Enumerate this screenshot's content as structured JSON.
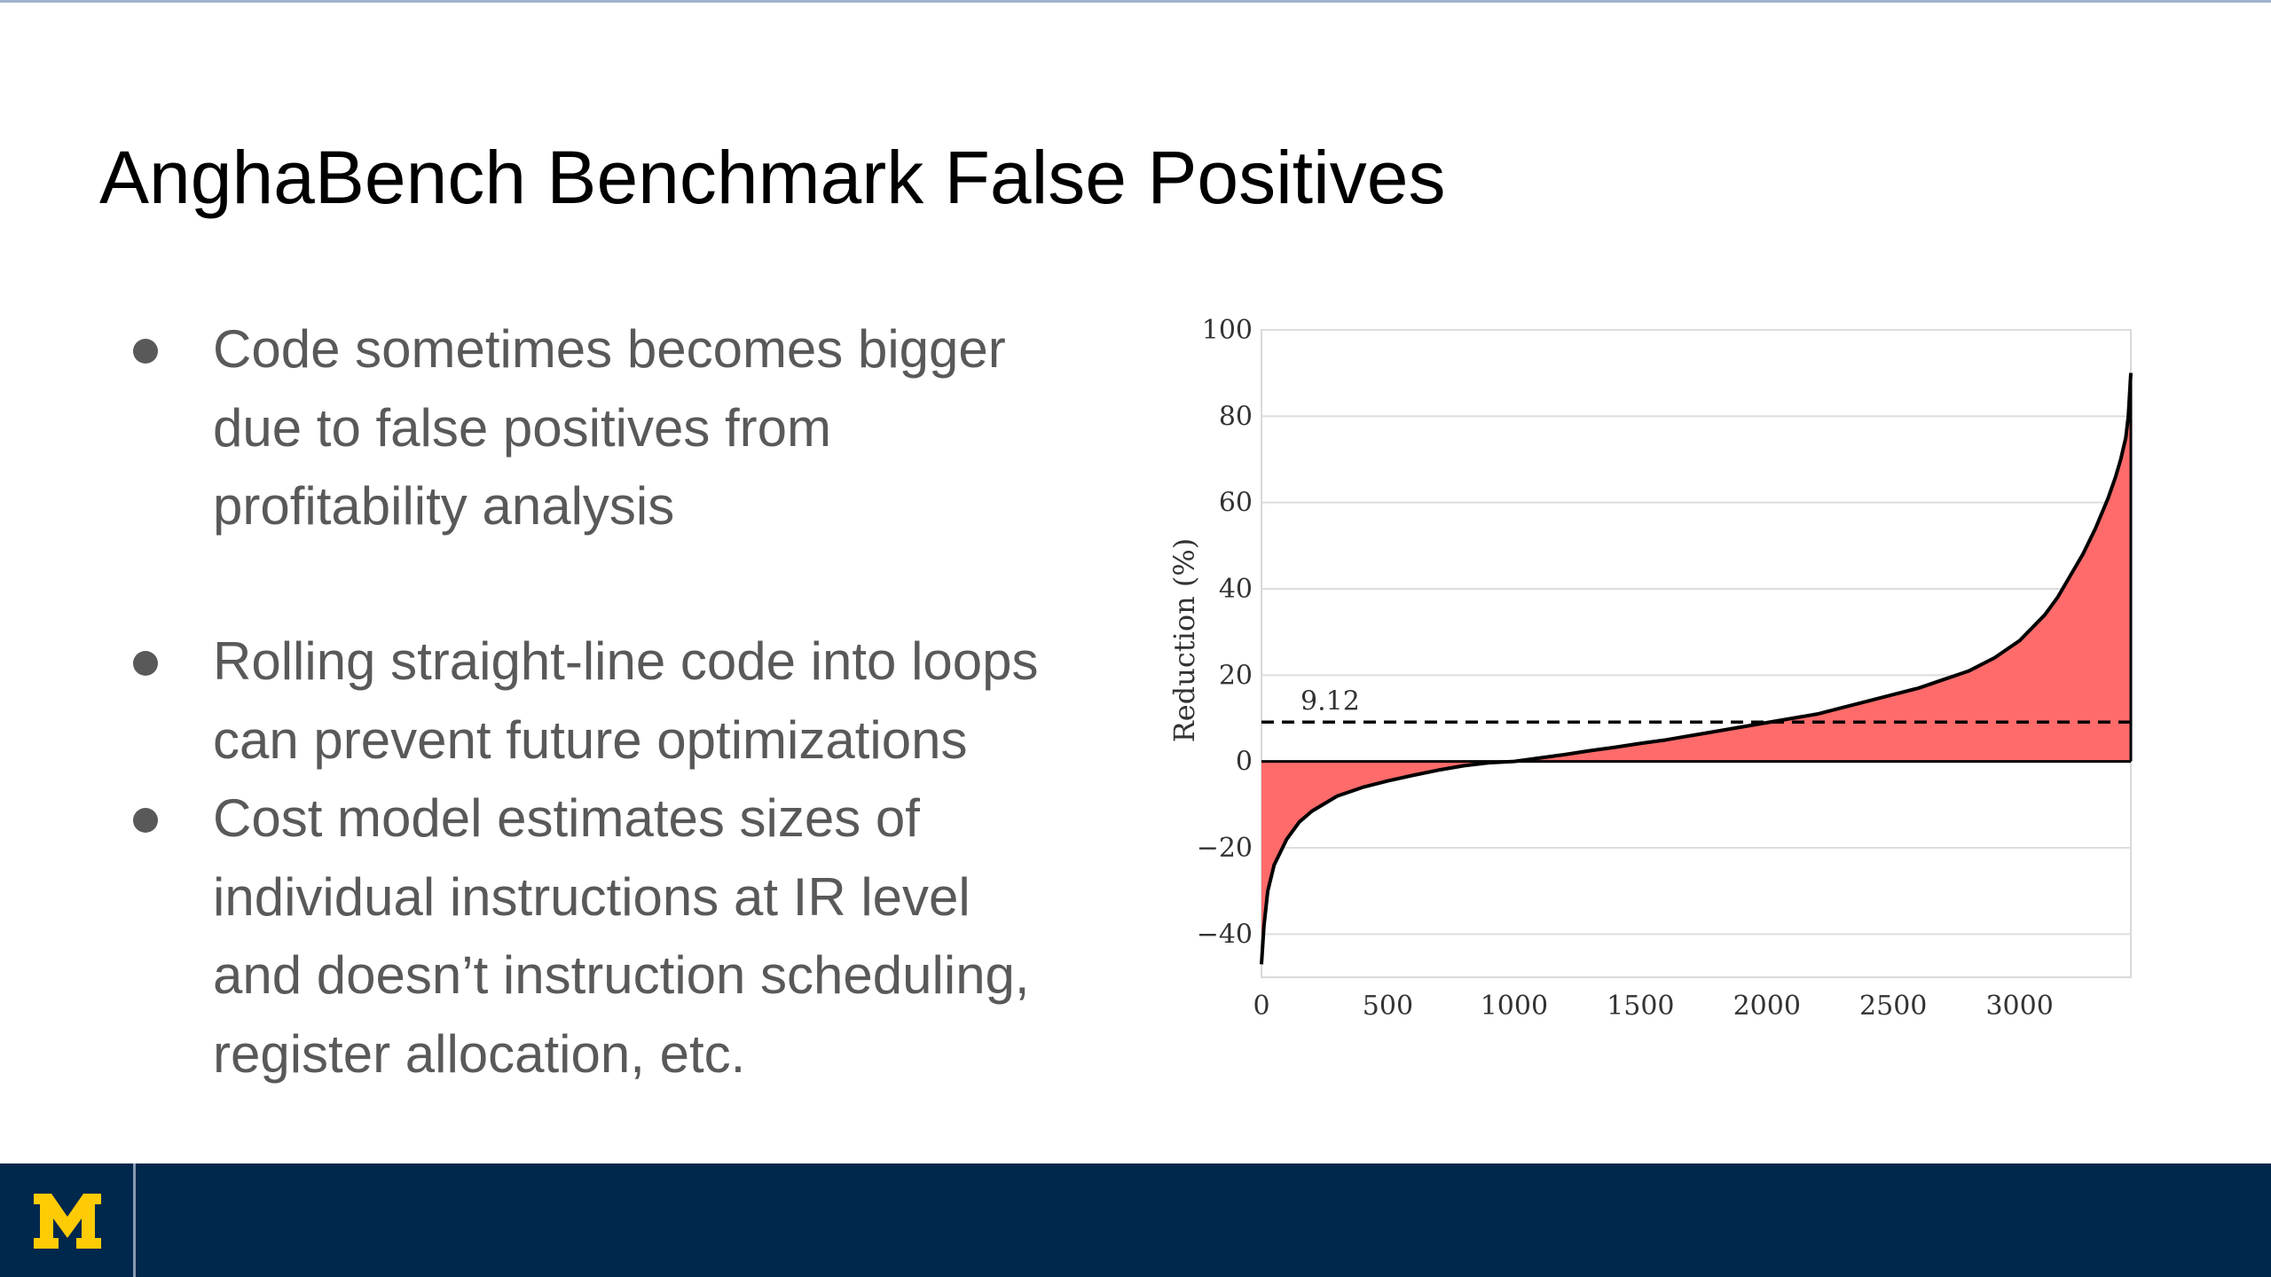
{
  "slide": {
    "title": "AnghaBench Benchmark False Positives",
    "bullets": [
      {
        "lines": [
          "Code sometimes becomes bigger",
          "due to false positives from",
          "profitability analysis"
        ]
      },
      {
        "lines": [
          "Rolling straight-line code into loops",
          "can prevent future optimizations"
        ]
      },
      {
        "lines": [
          "Cost model estimates sizes of",
          "individual instructions at IR level",
          "and doesn’t instruction scheduling,",
          "register allocation, etc."
        ]
      }
    ]
  },
  "chart_data": {
    "type": "area",
    "title": "",
    "xlabel": "",
    "ylabel": "Reduction (%)",
    "xlim": [
      0,
      3440
    ],
    "ylim": [
      -50,
      100
    ],
    "xticks": [
      0,
      500,
      1000,
      1500,
      2000,
      2500,
      3000
    ],
    "yticks": [
      -40,
      -20,
      0,
      20,
      40,
      60,
      80,
      100
    ],
    "grid": true,
    "fill_color": "#ff6b6b",
    "line_color": "#000000",
    "reference_line": {
      "value": 9.12,
      "label": "9.12",
      "style": "dashed"
    },
    "series": [
      {
        "x": [
          0,
          10,
          25,
          50,
          100,
          150,
          200,
          300,
          400,
          500,
          600,
          700,
          800,
          900,
          1000,
          1100,
          1200,
          1300,
          1400,
          1500,
          1600,
          1700,
          1800,
          1900,
          2000,
          2100,
          2200,
          2300,
          2400,
          2500,
          2600,
          2700,
          2800,
          2900,
          3000,
          3100,
          3150,
          3200,
          3250,
          3300,
          3350,
          3380,
          3400,
          3420,
          3430,
          3440
        ],
        "y": [
          -47,
          -38,
          -30,
          -24,
          -18,
          -14,
          -11.5,
          -8,
          -6,
          -4.5,
          -3.2,
          -2,
          -1,
          -0.3,
          0,
          0.8,
          1.6,
          2.5,
          3.3,
          4.2,
          5,
          6,
          7,
          8,
          9,
          10,
          11,
          12.5,
          14,
          15.5,
          17,
          19,
          21,
          24,
          28,
          34,
          38,
          43,
          48,
          54,
          61,
          66,
          70,
          75,
          80,
          90
        ]
      }
    ]
  },
  "footer": {
    "logo_text": "M",
    "colors": {
      "background": "#00274c",
      "maize": "#ffcb05"
    }
  }
}
